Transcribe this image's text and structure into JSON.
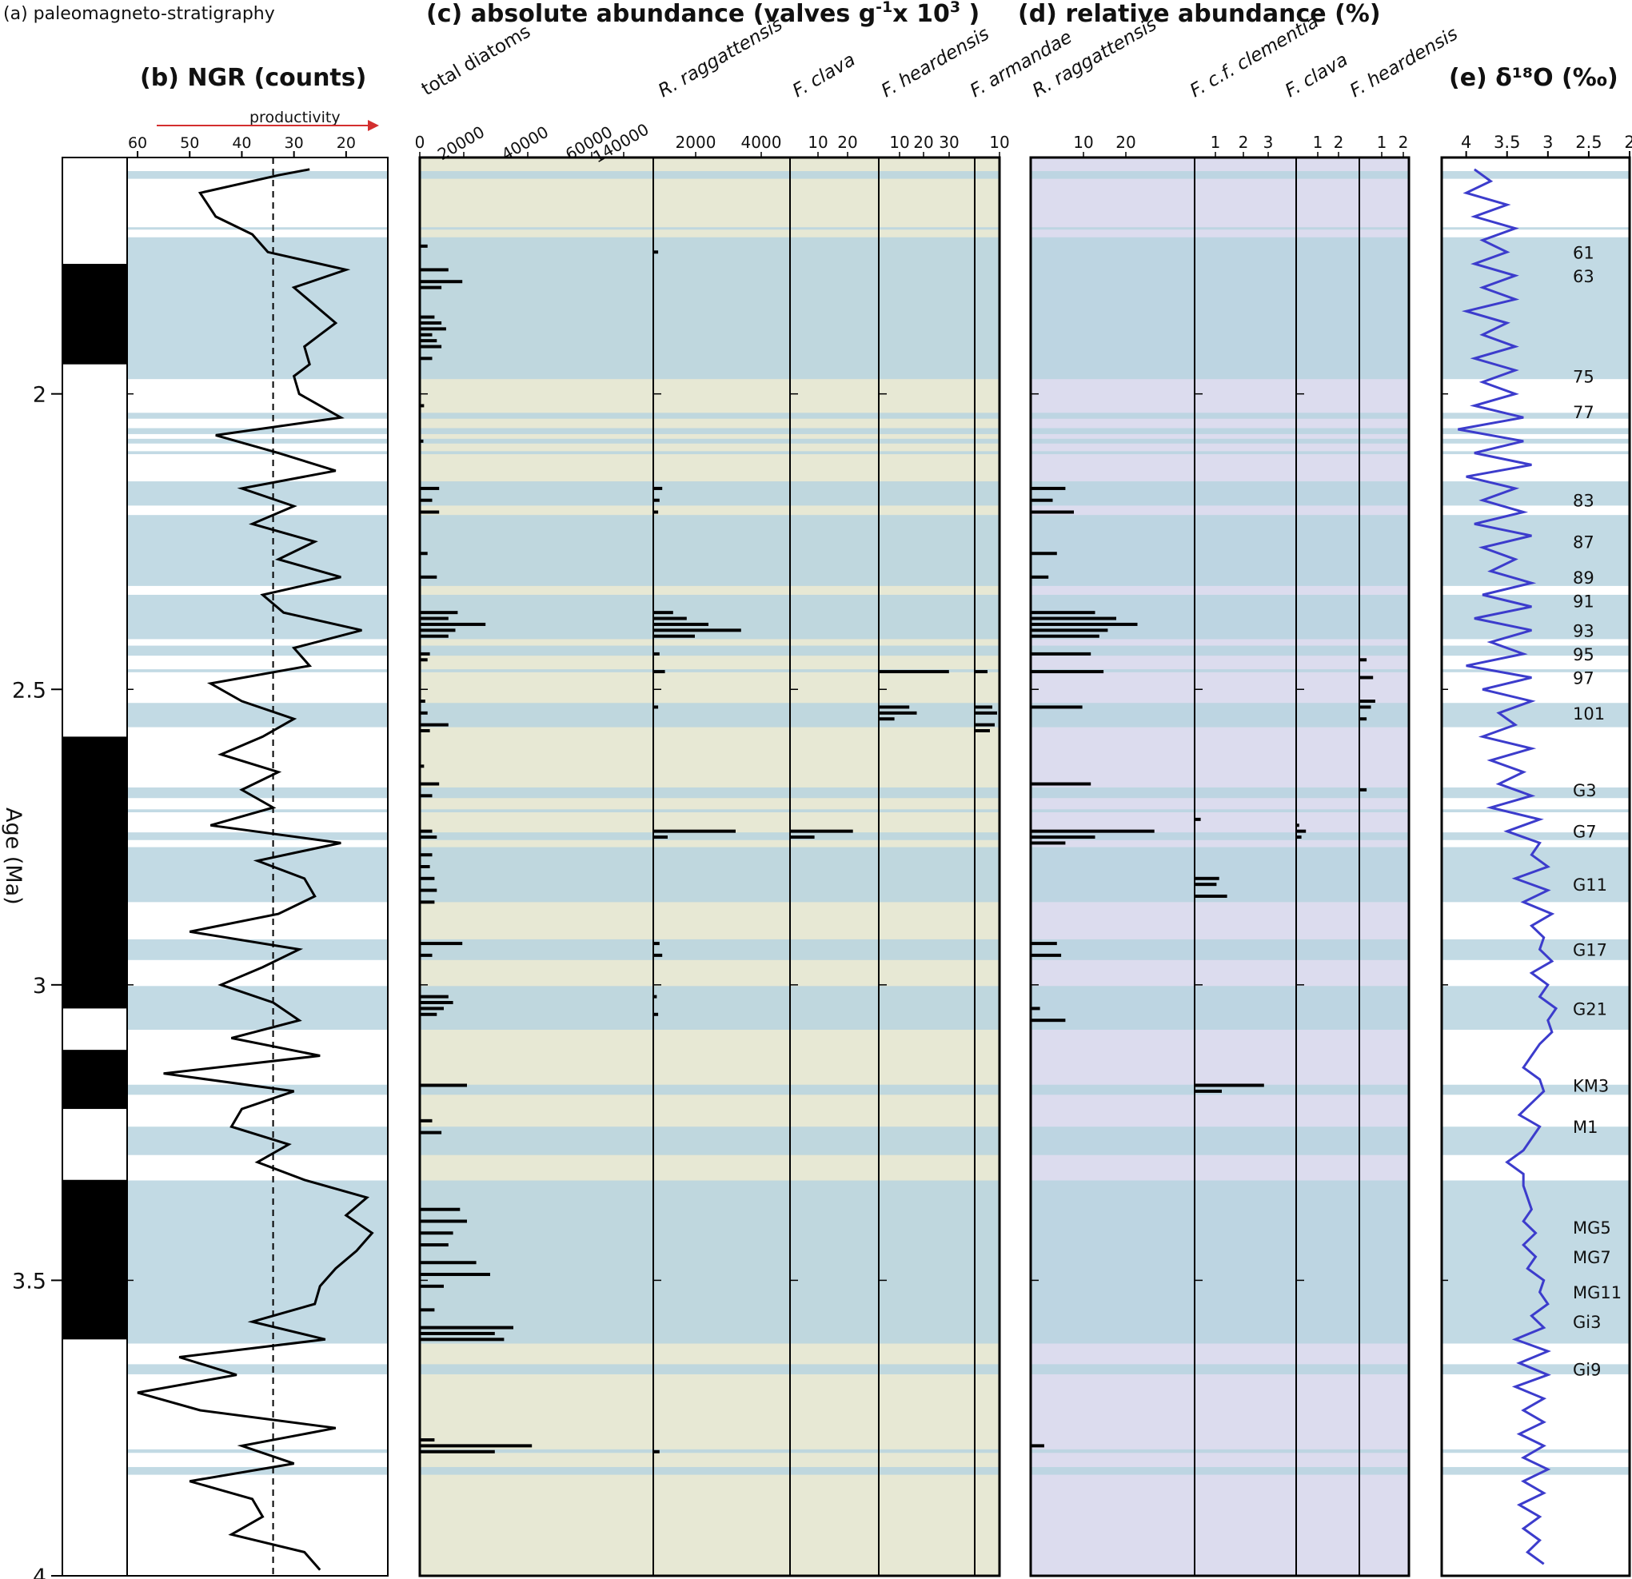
{
  "chart_data": {
    "type": "stratigraphic-multi-panel",
    "y_axis": {
      "label": "Age (Ma)",
      "range": [
        1.6,
        4.0
      ],
      "ticks": [
        "2",
        "2.5",
        "3",
        "3.5",
        "4"
      ]
    },
    "colors": {
      "band": "#b7d4df",
      "panel_c_bg": "#e7e8d4",
      "panel_d_bg": "#dcdcee",
      "d18o_line": "#3c3ccc",
      "arrow": "#d32f2f",
      "bars": "#000000"
    },
    "panels": {
      "a": {
        "title": "(a) paleomagneto-stratigraphy"
      },
      "b": {
        "title": "(b) NGR (counts)",
        "arrow_label": "productivity",
        "xticks": [
          "60",
          "50",
          "40",
          "30",
          "20"
        ],
        "xrange": [
          62,
          12
        ],
        "dashed_line_at": 34
      },
      "c": {
        "title": "(c) absolute abundance (valves g",
        "title_sup1": "-1",
        "title_mid": "x 10",
        "title_sup2": "3",
        "title_end": " )"
      },
      "d": {
        "title": "(d) relative abundance (%)"
      },
      "e": {
        "title": "(e) δ¹⁸O (‰)",
        "xticks": [
          "4",
          "3.5",
          "3",
          "2.5",
          "2"
        ],
        "xrange": [
          4.3,
          2.0
        ]
      }
    },
    "abs_columns": [
      {
        "name": "total diatoms",
        "ticks": [
          "0",
          "20000",
          "40000",
          "60000",
          "140000"
        ]
      },
      {
        "name": "R. raggattensis",
        "ticks": [
          "2000",
          "4000"
        ]
      },
      {
        "name": "F. clava",
        "ticks": [
          "10",
          "20"
        ]
      },
      {
        "name": "F. heardensis",
        "ticks": [
          "10",
          "20",
          "30"
        ]
      },
      {
        "name": "F. armandae",
        "ticks": [
          "10"
        ]
      }
    ],
    "rel_columns": [
      {
        "name": "R. raggattensis",
        "ticks": [
          "10",
          "20"
        ]
      },
      {
        "name": "F. c.f. clementia",
        "ticks": [
          "1",
          "2",
          "3"
        ]
      },
      {
        "name": "F. clava",
        "ticks": [
          "1",
          "2"
        ]
      },
      {
        "name": "F. heardensis",
        "ticks": [
          "1",
          "2"
        ]
      }
    ],
    "magnetostratigraphy_normal_ma": [
      [
        1.78,
        1.95
      ],
      [
        2.58,
        3.04
      ],
      [
        3.11,
        3.21
      ],
      [
        3.33,
        3.6
      ]
    ],
    "stage_labels": [
      {
        "label": "61",
        "age": 1.76
      },
      {
        "label": "63",
        "age": 1.8
      },
      {
        "label": "75",
        "age": 1.97
      },
      {
        "label": "77",
        "age": 2.03
      },
      {
        "label": "83",
        "age": 2.18
      },
      {
        "label": "87",
        "age": 2.25
      },
      {
        "label": "89",
        "age": 2.31
      },
      {
        "label": "91",
        "age": 2.35
      },
      {
        "label": "93",
        "age": 2.4
      },
      {
        "label": "95",
        "age": 2.44
      },
      {
        "label": "97",
        "age": 2.48
      },
      {
        "label": "101",
        "age": 2.54
      },
      {
        "label": "G3",
        "age": 2.67
      },
      {
        "label": "G7",
        "age": 2.74
      },
      {
        "label": "G11",
        "age": 2.83
      },
      {
        "label": "G17",
        "age": 2.94
      },
      {
        "label": "G21",
        "age": 3.04
      },
      {
        "label": "KM3",
        "age": 3.17
      },
      {
        "label": "M1",
        "age": 3.24
      },
      {
        "label": "MG5",
        "age": 3.41
      },
      {
        "label": "MG7",
        "age": 3.46
      },
      {
        "label": "MG11",
        "age": 3.52
      },
      {
        "label": "Gi3",
        "age": 3.57
      },
      {
        "label": "Gi9",
        "age": 3.65
      }
    ],
    "bands_ma": [
      [
        1.623,
        1.636
      ],
      [
        1.718,
        1.722
      ],
      [
        1.735,
        1.975
      ],
      [
        2.032,
        2.042
      ],
      [
        2.058,
        2.068
      ],
      [
        2.076,
        2.084
      ],
      [
        2.097,
        2.102
      ],
      [
        2.148,
        2.189
      ],
      [
        2.205,
        2.325
      ],
      [
        2.34,
        2.415
      ],
      [
        2.426,
        2.443
      ],
      [
        2.466,
        2.471
      ],
      [
        2.523,
        2.564
      ],
      [
        2.666,
        2.684
      ],
      [
        2.703,
        2.708
      ],
      [
        2.742,
        2.755
      ],
      [
        2.767,
        2.86
      ],
      [
        2.923,
        2.958
      ],
      [
        3.002,
        3.076
      ],
      [
        3.169,
        3.186
      ],
      [
        3.24,
        3.288
      ],
      [
        3.331,
        3.607
      ],
      [
        3.642,
        3.659
      ],
      [
        3.786,
        3.792
      ],
      [
        3.816,
        3.829
      ]
    ],
    "ngr": {
      "ages": [
        1.62,
        1.63,
        1.66,
        1.7,
        1.73,
        1.76,
        1.79,
        1.82,
        1.85,
        1.88,
        1.9,
        1.92,
        1.95,
        1.97,
        2.0,
        2.04,
        2.07,
        2.1,
        2.13,
        2.16,
        2.19,
        2.22,
        2.25,
        2.28,
        2.31,
        2.34,
        2.37,
        2.4,
        2.43,
        2.46,
        2.49,
        2.52,
        2.55,
        2.58,
        2.61,
        2.64,
        2.67,
        2.7,
        2.73,
        2.76,
        2.79,
        2.82,
        2.85,
        2.88,
        2.91,
        2.94,
        2.97,
        3.0,
        3.03,
        3.06,
        3.09,
        3.12,
        3.15,
        3.18,
        3.21,
        3.24,
        3.27,
        3.3,
        3.33,
        3.36,
        3.39,
        3.42,
        3.45,
        3.48,
        3.51,
        3.54,
        3.57,
        3.6,
        3.63,
        3.66,
        3.69,
        3.72,
        3.75,
        3.78,
        3.81,
        3.84,
        3.87,
        3.9,
        3.93,
        3.96,
        3.99
      ],
      "values": [
        27,
        33,
        48,
        45,
        38,
        35,
        20,
        30,
        26,
        22,
        25,
        28,
        27,
        30,
        29,
        21,
        45,
        33,
        22,
        40,
        30,
        38,
        26,
        33,
        21,
        36,
        32,
        17,
        30,
        27,
        46,
        40,
        30,
        36,
        44,
        33,
        40,
        34,
        46,
        21,
        37,
        28,
        26,
        33,
        50,
        29,
        36,
        44,
        34,
        29,
        42,
        25,
        55,
        30,
        40,
        42,
        31,
        37,
        28,
        16,
        20,
        15,
        18,
        22,
        25,
        26,
        38,
        24,
        52,
        41,
        60,
        48,
        22,
        40,
        30,
        50,
        38,
        36,
        42,
        28,
        25
      ]
    },
    "d18o": {
      "ages": [
        1.62,
        1.64,
        1.66,
        1.68,
        1.7,
        1.72,
        1.74,
        1.76,
        1.78,
        1.8,
        1.82,
        1.84,
        1.86,
        1.88,
        1.9,
        1.92,
        1.94,
        1.96,
        1.98,
        2.0,
        2.02,
        2.04,
        2.06,
        2.08,
        2.1,
        2.12,
        2.14,
        2.16,
        2.18,
        2.2,
        2.22,
        2.24,
        2.26,
        2.28,
        2.3,
        2.32,
        2.34,
        2.36,
        2.38,
        2.4,
        2.42,
        2.44,
        2.46,
        2.48,
        2.5,
        2.52,
        2.54,
        2.56,
        2.58,
        2.6,
        2.62,
        2.64,
        2.66,
        2.68,
        2.7,
        2.72,
        2.74,
        2.76,
        2.78,
        2.8,
        2.82,
        2.84,
        2.86,
        2.88,
        2.9,
        2.92,
        2.94,
        2.96,
        2.98,
        3.0,
        3.02,
        3.04,
        3.06,
        3.08,
        3.1,
        3.12,
        3.14,
        3.16,
        3.18,
        3.2,
        3.22,
        3.24,
        3.26,
        3.28,
        3.3,
        3.32,
        3.34,
        3.36,
        3.38,
        3.4,
        3.42,
        3.44,
        3.46,
        3.48,
        3.5,
        3.52,
        3.54,
        3.56,
        3.58,
        3.6,
        3.62,
        3.64,
        3.66,
        3.68,
        3.7,
        3.72,
        3.74,
        3.76,
        3.78,
        3.8,
        3.82,
        3.84,
        3.86,
        3.88,
        3.9,
        3.92,
        3.94,
        3.96,
        3.98
      ],
      "values": [
        3.9,
        3.7,
        4.0,
        3.5,
        3.9,
        3.4,
        3.8,
        3.5,
        3.9,
        3.4,
        3.8,
        3.4,
        4.0,
        3.5,
        3.8,
        3.4,
        3.9,
        3.4,
        3.8,
        3.4,
        3.9,
        3.3,
        4.1,
        3.3,
        3.9,
        3.2,
        4.0,
        3.4,
        3.8,
        3.3,
        3.9,
        3.2,
        3.8,
        3.4,
        3.7,
        3.2,
        3.8,
        3.2,
        3.9,
        3.2,
        3.7,
        3.3,
        4.0,
        3.2,
        3.8,
        3.2,
        3.6,
        3.4,
        3.8,
        3.2,
        3.7,
        3.3,
        3.6,
        3.2,
        3.7,
        3.1,
        3.5,
        3.1,
        3.2,
        3.0,
        3.4,
        3.0,
        3.3,
        2.95,
        3.2,
        3.05,
        3.1,
        2.95,
        3.2,
        3.0,
        3.1,
        2.9,
        3.0,
        2.95,
        3.1,
        3.2,
        3.3,
        3.1,
        3.05,
        3.2,
        3.35,
        3.1,
        3.2,
        3.3,
        3.5,
        3.3,
        3.3,
        3.25,
        3.2,
        3.3,
        3.15,
        3.3,
        3.15,
        3.25,
        3.05,
        3.1,
        3.0,
        3.2,
        3.05,
        3.4,
        3.0,
        3.35,
        3.0,
        3.4,
        3.05,
        3.3,
        3.05,
        3.35,
        3.05,
        3.3,
        3.0,
        3.3,
        3.05,
        3.35,
        3.1,
        3.3,
        3.1,
        3.25,
        3.05
      ]
    },
    "total_diatoms": [
      [
        1.75,
        3000
      ],
      [
        1.79,
        12000
      ],
      [
        1.81,
        18000
      ],
      [
        1.82,
        9000
      ],
      [
        1.87,
        6000
      ],
      [
        1.88,
        9000
      ],
      [
        1.89,
        11000
      ],
      [
        1.9,
        5000
      ],
      [
        1.91,
        7000
      ],
      [
        1.92,
        9000
      ],
      [
        1.94,
        5000
      ],
      [
        2.02,
        1500
      ],
      [
        2.08,
        1200
      ],
      [
        2.16,
        8000
      ],
      [
        2.18,
        5000
      ],
      [
        2.2,
        8000
      ],
      [
        2.27,
        3000
      ],
      [
        2.31,
        7000
      ],
      [
        2.37,
        16000
      ],
      [
        2.38,
        12000
      ],
      [
        2.39,
        28000
      ],
      [
        2.4,
        15000
      ],
      [
        2.41,
        12000
      ],
      [
        2.44,
        4000
      ],
      [
        2.45,
        3000
      ],
      [
        2.52,
        2000
      ],
      [
        2.54,
        3000
      ],
      [
        2.56,
        12000
      ],
      [
        2.57,
        4000
      ],
      [
        2.63,
        1500
      ],
      [
        2.66,
        8000
      ],
      [
        2.68,
        5000
      ],
      [
        2.74,
        5000
      ],
      [
        2.75,
        7000
      ],
      [
        2.78,
        5000
      ],
      [
        2.8,
        4000
      ],
      [
        2.82,
        6000
      ],
      [
        2.84,
        7000
      ],
      [
        2.86,
        6000
      ],
      [
        2.93,
        18000
      ],
      [
        2.95,
        5000
      ],
      [
        3.02,
        12000
      ],
      [
        3.03,
        14000
      ],
      [
        3.04,
        10000
      ],
      [
        3.05,
        7000
      ],
      [
        3.17,
        20000
      ],
      [
        3.23,
        5000
      ],
      [
        3.25,
        9000
      ],
      [
        3.38,
        17000
      ],
      [
        3.4,
        20000
      ],
      [
        3.42,
        14000
      ],
      [
        3.44,
        12000
      ],
      [
        3.47,
        24000
      ],
      [
        3.49,
        30000
      ],
      [
        3.51,
        10000
      ],
      [
        3.55,
        6000
      ],
      [
        3.58,
        40000
      ],
      [
        3.59,
        32000
      ],
      [
        3.6,
        36000
      ],
      [
        3.77,
        6000
      ],
      [
        3.78,
        48000
      ],
      [
        3.79,
        32000
      ]
    ],
    "r_ragg_abs": [
      [
        1.76,
        150
      ],
      [
        2.16,
        300
      ],
      [
        2.18,
        200
      ],
      [
        2.2,
        150
      ],
      [
        2.37,
        700
      ],
      [
        2.38,
        1200
      ],
      [
        2.39,
        2000
      ],
      [
        2.4,
        3200
      ],
      [
        2.41,
        1500
      ],
      [
        2.44,
        200
      ],
      [
        2.47,
        400
      ],
      [
        2.53,
        150
      ],
      [
        2.74,
        3000
      ],
      [
        2.75,
        500
      ],
      [
        2.93,
        200
      ],
      [
        2.95,
        300
      ],
      [
        3.02,
        100
      ],
      [
        3.05,
        150
      ],
      [
        3.79,
        200
      ]
    ],
    "f_clava_abs": [
      [
        2.74,
        21
      ],
      [
        2.75,
        8
      ]
    ],
    "f_heard_abs": [
      [
        2.47,
        28
      ],
      [
        2.53,
        12
      ],
      [
        2.54,
        15
      ],
      [
        2.55,
        6
      ]
    ],
    "f_arm_abs": [
      [
        2.47,
        5
      ],
      [
        2.53,
        7
      ],
      [
        2.54,
        9
      ],
      [
        2.56,
        8
      ],
      [
        2.57,
        6
      ]
    ],
    "r_ragg_rel": [
      [
        2.16,
        8
      ],
      [
        2.18,
        5
      ],
      [
        2.2,
        10
      ],
      [
        2.27,
        6
      ],
      [
        2.31,
        4
      ],
      [
        2.37,
        15
      ],
      [
        2.38,
        20
      ],
      [
        2.39,
        25
      ],
      [
        2.4,
        18
      ],
      [
        2.41,
        16
      ],
      [
        2.44,
        14
      ],
      [
        2.47,
        17
      ],
      [
        2.53,
        12
      ],
      [
        2.66,
        14
      ],
      [
        2.74,
        29
      ],
      [
        2.75,
        15
      ],
      [
        2.76,
        8
      ],
      [
        2.93,
        6
      ],
      [
        2.95,
        7
      ],
      [
        3.04,
        2
      ],
      [
        3.06,
        8
      ],
      [
        3.78,
        3
      ]
    ],
    "f_clem_rel": [
      [
        2.72,
        0.2
      ],
      [
        2.82,
        0.9
      ],
      [
        2.83,
        0.8
      ],
      [
        2.85,
        1.2
      ],
      [
        3.17,
        2.6
      ],
      [
        3.18,
        1.0
      ]
    ],
    "f_clava_rel": [
      [
        2.73,
        0.1
      ],
      [
        2.74,
        0.4
      ],
      [
        2.75,
        0.2
      ]
    ],
    "f_heard_rel": [
      [
        2.45,
        0.3
      ],
      [
        2.48,
        0.6
      ],
      [
        2.52,
        0.7
      ],
      [
        2.53,
        0.5
      ],
      [
        2.55,
        0.3
      ],
      [
        2.67,
        0.3
      ]
    ]
  }
}
